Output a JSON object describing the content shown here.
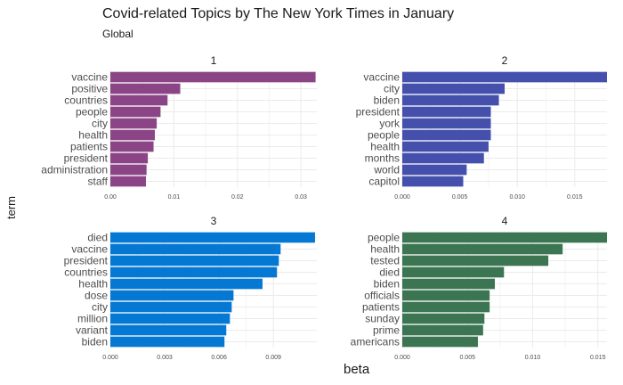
{
  "chart_data": {
    "type": "bar",
    "orientation": "horizontal",
    "title": "Covid-related Topics by The New York Times in January",
    "subtitle": "Global",
    "xlabel": "beta",
    "ylabel": "term",
    "grid": true,
    "facets": [
      {
        "label": "1",
        "color": "#8B4587",
        "xlim": [
          0,
          0.0325
        ],
        "xticks": [
          "0.00",
          "0.01",
          "0.02",
          "0.03"
        ],
        "xtick_values": [
          0,
          0.01,
          0.02,
          0.03
        ],
        "categories": [
          "vaccine",
          "positive",
          "countries",
          "people",
          "city",
          "health",
          "patients",
          "president",
          "administration",
          "staff"
        ],
        "values": [
          0.0323,
          0.011,
          0.009,
          0.0079,
          0.0073,
          0.007,
          0.0068,
          0.0059,
          0.0057,
          0.0056
        ]
      },
      {
        "label": "2",
        "color": "#4450AC",
        "xlim": [
          0,
          0.0178
        ],
        "xticks": [
          "0.000",
          "0.005",
          "0.010",
          "0.015"
        ],
        "xtick_values": [
          0,
          0.005,
          0.01,
          0.015
        ],
        "categories": [
          "vaccine",
          "city",
          "biden",
          "president",
          "york",
          "people",
          "health",
          "months",
          "world",
          "capitol"
        ],
        "values": [
          0.0178,
          0.0089,
          0.0084,
          0.0077,
          0.0077,
          0.0077,
          0.0075,
          0.0071,
          0.0056,
          0.0053
        ]
      },
      {
        "label": "3",
        "color": "#0578D4",
        "xlim": [
          0,
          0.0114
        ],
        "xticks": [
          "0.000",
          "0.003",
          "0.006",
          "0.009"
        ],
        "xtick_values": [
          0,
          0.003,
          0.006,
          0.009
        ],
        "categories": [
          "died",
          "vaccine",
          "president",
          "countries",
          "health",
          "dose",
          "city",
          "million",
          "variant",
          "biden"
        ],
        "values": [
          0.0113,
          0.0094,
          0.0093,
          0.0092,
          0.0084,
          0.0068,
          0.0067,
          0.0066,
          0.0064,
          0.0063
        ]
      },
      {
        "label": "4",
        "color": "#3B7551",
        "xlim": [
          0,
          0.0157
        ],
        "xticks": [
          "0.000",
          "0.005",
          "0.010",
          "0.015"
        ],
        "xtick_values": [
          0,
          0.005,
          0.01,
          0.015
        ],
        "categories": [
          "people",
          "health",
          "tested",
          "died",
          "biden",
          "officials",
          "patients",
          "sunday",
          "prime",
          "americans"
        ],
        "values": [
          0.0157,
          0.0123,
          0.0112,
          0.0078,
          0.0071,
          0.0067,
          0.0067,
          0.0063,
          0.0062,
          0.0058
        ]
      }
    ]
  }
}
